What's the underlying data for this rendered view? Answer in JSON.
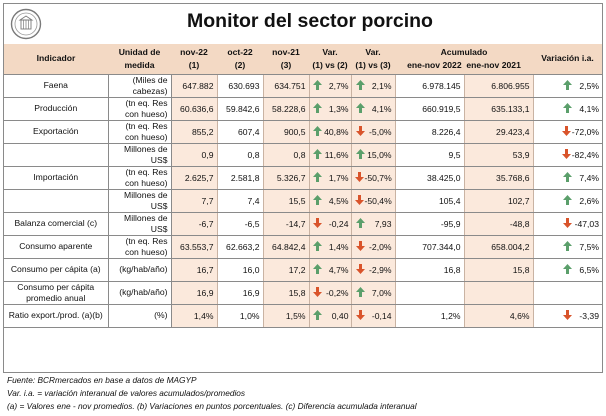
{
  "title": "Monitor del sector porcino",
  "logo": {
    "icon": "circular-seal-logo",
    "color": "#7a7a7a"
  },
  "colors": {
    "header_bg": "#f3d9c4",
    "cell_bg": "#fbe9dc",
    "arrow_up": "#5b9f6b",
    "arrow_down": "#d9542b"
  },
  "headers": {
    "indicador": "Indicador",
    "unidad_1": "Unidad de",
    "unidad_2": "medida",
    "c1_1": "nov-22",
    "c1_2": "(1)",
    "c2_1": "oct-22",
    "c2_2": "(2)",
    "c3_1": "nov-21",
    "c3_2": "(3)",
    "v12_1": "Var.",
    "v12_2": "(1) vs (2)",
    "v13_1": "Var.",
    "v13_2": "(1) vs (3)",
    "acum": "Acumulado",
    "acum_a": "ene-nov 2022",
    "acum_b": "ene-nov 2021",
    "via": "Variación i.a."
  },
  "rows": [
    {
      "ind": "Faena",
      "unit": [
        "(Miles de",
        "cabezas)"
      ],
      "v1": "647.882",
      "v2": "630.693",
      "v3": "634.751",
      "var12": "2,7%",
      "dir12": "up",
      "var13": "2,1%",
      "dir13": "up",
      "acc1": "6.978.145",
      "acc2": "6.806.955",
      "via": "2,5%",
      "dirvia": "up"
    },
    {
      "ind": "Producción",
      "unit": [
        "(tn eq. Res",
        "con hueso)"
      ],
      "v1": "60.636,6",
      "v2": "59.842,6",
      "v3": "58.228,6",
      "var12": "1,3%",
      "dir12": "up",
      "var13": "4,1%",
      "dir13": "up",
      "acc1": "660.919,5",
      "acc2": "635.133,1",
      "via": "4,1%",
      "dirvia": "up"
    },
    {
      "ind": "Exportación",
      "unit": [
        "(tn eq. Res",
        "con hueso)"
      ],
      "v1": "855,2",
      "v2": "607,4",
      "v3": "900,5",
      "var12": "40,8%",
      "dir12": "up",
      "var13": "-5,0%",
      "dir13": "down",
      "acc1": "8.226,4",
      "acc2": "29.423,4",
      "via": "-72,0%",
      "dirvia": "down"
    },
    {
      "ind": "",
      "unit": [
        "Millones de",
        "US$"
      ],
      "v1": "0,9",
      "v2": "0,8",
      "v3": "0,8",
      "var12": "11,6%",
      "dir12": "up",
      "var13": "15,0%",
      "dir13": "up",
      "acc1": "9,5",
      "acc2": "53,9",
      "via": "-82,4%",
      "dirvia": "down"
    },
    {
      "ind": "Importación",
      "unit": [
        "(tn eq. Res",
        "con hueso)"
      ],
      "v1": "2.625,7",
      "v2": "2.581,8",
      "v3": "5.326,7",
      "var12": "1,7%",
      "dir12": "up",
      "var13": "-50,7%",
      "dir13": "down",
      "acc1": "38.425,0",
      "acc2": "35.768,6",
      "via": "7,4%",
      "dirvia": "up"
    },
    {
      "ind": "",
      "unit": [
        "Millones de",
        "US$"
      ],
      "v1": "7,7",
      "v2": "7,4",
      "v3": "15,5",
      "var12": "4,5%",
      "dir12": "up",
      "var13": "-50,4%",
      "dir13": "down",
      "acc1": "105,4",
      "acc2": "102,7",
      "via": "2,6%",
      "dirvia": "up"
    },
    {
      "ind": "Balanza comercial (c)",
      "unit": [
        "Millones de",
        "US$"
      ],
      "v1": "-6,7",
      "v2": "-6,5",
      "v3": "-14,7",
      "var12": "-0,24",
      "dir12": "down",
      "var13": "7,93",
      "dir13": "up",
      "acc1": "-95,9",
      "acc2": "-48,8",
      "via": "-47,03",
      "dirvia": "down"
    },
    {
      "ind": "Consumo aparente",
      "unit": [
        "(tn eq. Res",
        "con hueso)"
      ],
      "v1": "63.553,7",
      "v2": "62.663,2",
      "v3": "64.842,4",
      "var12": "1,4%",
      "dir12": "up",
      "var13": "-2,0%",
      "dir13": "down",
      "acc1": "707.344,0",
      "acc2": "658.004,2",
      "via": "7,5%",
      "dirvia": "up"
    },
    {
      "ind": "Consumo per cápita (a)",
      "unit": [
        "(kg/hab/año)"
      ],
      "v1": "16,7",
      "v2": "16,0",
      "v3": "17,2",
      "var12": "4,7%",
      "dir12": "up",
      "var13": "-2,9%",
      "dir13": "down",
      "acc1": "16,8",
      "acc2": "15,8",
      "via": "6,5%",
      "dirvia": "up"
    },
    {
      "ind": "Consumo per cápita promedio anual",
      "unit": [
        "(kg/hab/año)"
      ],
      "v1": "16,9",
      "v2": "16,9",
      "v3": "15,8",
      "var12": "-0,2%",
      "dir12": "down",
      "var13": "7,0%",
      "dir13": "up",
      "acc1": "",
      "acc2": "",
      "via": "",
      "dirvia": ""
    },
    {
      "ind": "Ratio export./prod. (a)(b)",
      "unit": [
        "(%)"
      ],
      "v1": "1,4%",
      "v2": "1,0%",
      "v3": "1,5%",
      "var12": "0,40",
      "dir12": "up",
      "var13": "-0,14",
      "dir13": "down",
      "acc1": "1,2%",
      "acc2": "4,6%",
      "via": "-3,39",
      "dirvia": "down"
    }
  ],
  "notes": [
    "Fuente: BCRmercados en base a datos de MAGYP",
    "Var. i.a. = variación interanual de valores acumulados/promedios",
    "(a) = Valores ene - nov promedios. (b) Variaciones en puntos porcentuales. (c) Diferencia acumulada interanual"
  ]
}
